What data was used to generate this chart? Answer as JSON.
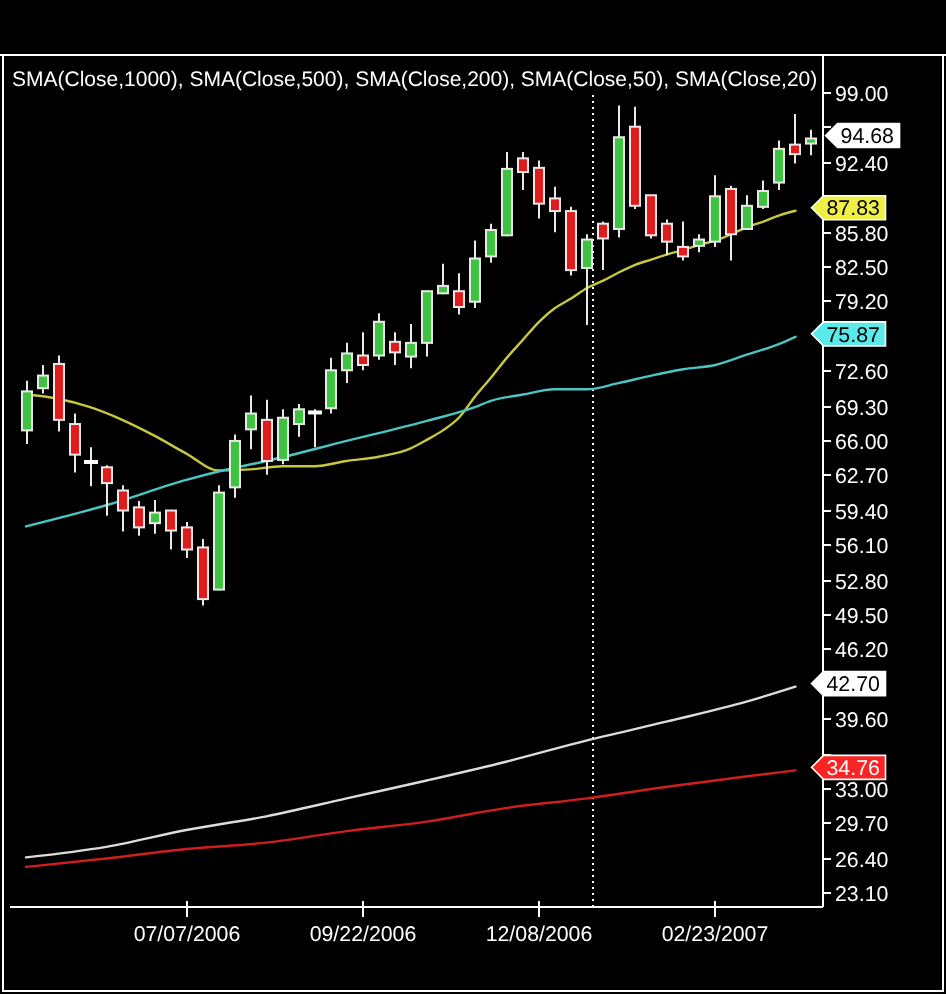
{
  "chart_data": {
    "type": "candlestick",
    "title": "SMA(Close,1000), SMA(Close,500), SMA(Close,200), SMA(Close,50), SMA(Close,20)",
    "x": [
      "2006-04-28",
      "2006-05-05",
      "2006-05-12",
      "2006-05-19",
      "2006-05-26",
      "2006-06-02",
      "2006-06-09",
      "2006-06-16",
      "2006-06-23",
      "2006-06-30",
      "2006-07-07",
      "2006-07-14",
      "2006-07-21",
      "2006-07-28",
      "2006-08-04",
      "2006-08-11",
      "2006-08-18",
      "2006-08-25",
      "2006-09-01",
      "2006-09-08",
      "2006-09-15",
      "2006-09-22",
      "2006-09-29",
      "2006-10-06",
      "2006-10-13",
      "2006-10-20",
      "2006-10-27",
      "2006-11-03",
      "2006-11-10",
      "2006-11-17",
      "2006-11-24",
      "2006-12-01",
      "2006-12-08",
      "2006-12-15",
      "2006-12-22",
      "2006-12-29",
      "2007-01-05",
      "2007-01-12",
      "2007-01-19",
      "2007-01-26",
      "2007-02-02",
      "2007-02-09",
      "2007-02-16",
      "2007-02-23",
      "2007-03-02",
      "2007-03-09",
      "2007-03-16",
      "2007-03-23",
      "2007-03-30",
      "2007-04-06"
    ],
    "ohlc": [
      [
        67.0,
        71.7,
        65.7,
        70.7
      ],
      [
        71.0,
        73.2,
        70.5,
        72.2
      ],
      [
        73.3,
        74.1,
        66.9,
        68.0
      ],
      [
        67.6,
        68.6,
        63.0,
        64.7
      ],
      [
        64.0,
        65.4,
        61.7,
        64.0
      ],
      [
        63.5,
        63.7,
        58.9,
        62.0
      ],
      [
        61.3,
        61.8,
        57.4,
        59.4
      ],
      [
        59.7,
        60.3,
        57.0,
        57.8
      ],
      [
        58.2,
        60.4,
        57.2,
        59.2
      ],
      [
        59.4,
        59.4,
        55.7,
        57.5
      ],
      [
        57.8,
        58.3,
        54.9,
        55.7
      ],
      [
        55.9,
        56.7,
        50.4,
        51.0
      ],
      [
        51.9,
        61.8,
        51.9,
        61.1
      ],
      [
        61.6,
        66.6,
        60.6,
        66.0
      ],
      [
        67.1,
        70.3,
        65.2,
        68.6
      ],
      [
        68.0,
        69.9,
        62.8,
        64.1
      ],
      [
        64.2,
        69.0,
        63.8,
        68.2
      ],
      [
        67.6,
        69.5,
        66.4,
        69.0
      ],
      [
        68.7,
        69.0,
        65.4,
        68.7
      ],
      [
        69.1,
        73.9,
        68.6,
        72.7
      ],
      [
        72.7,
        75.3,
        71.5,
        74.3
      ],
      [
        74.1,
        76.3,
        72.7,
        73.2
      ],
      [
        74.1,
        78.1,
        73.7,
        77.3
      ],
      [
        75.4,
        76.3,
        73.2,
        74.4
      ],
      [
        74.0,
        77.1,
        72.9,
        75.3
      ],
      [
        75.3,
        80.2,
        74.0,
        80.2
      ],
      [
        80.0,
        82.8,
        79.9,
        80.7
      ],
      [
        80.2,
        81.9,
        78.0,
        78.7
      ],
      [
        79.2,
        85.0,
        78.6,
        83.3
      ],
      [
        83.5,
        86.6,
        82.9,
        86.0
      ],
      [
        85.5,
        93.4,
        85.4,
        91.8
      ],
      [
        92.8,
        93.4,
        89.8,
        91.5
      ],
      [
        91.9,
        92.6,
        87.1,
        88.5
      ],
      [
        89.0,
        90.1,
        85.8,
        87.8
      ],
      [
        87.8,
        88.2,
        81.7,
        82.2
      ],
      [
        82.4,
        85.6,
        77.0,
        85.1
      ],
      [
        86.6,
        86.8,
        82.2,
        85.2
      ],
      [
        86.1,
        97.8,
        85.3,
        94.8
      ],
      [
        95.8,
        97.7,
        88.0,
        88.3
      ],
      [
        89.3,
        89.3,
        85.2,
        85.5
      ],
      [
        86.6,
        87.0,
        83.6,
        84.9
      ],
      [
        84.4,
        86.8,
        83.1,
        83.5
      ],
      [
        84.5,
        85.6,
        83.9,
        85.1
      ],
      [
        84.9,
        91.2,
        84.4,
        89.2
      ],
      [
        89.9,
        90.2,
        83.1,
        85.6
      ],
      [
        86.1,
        89.3,
        86.0,
        88.3
      ],
      [
        88.2,
        90.7,
        88.0,
        89.7
      ],
      [
        90.5,
        94.5,
        89.8,
        93.7
      ],
      [
        94.1,
        97.0,
        92.3,
        93.2
      ],
      [
        94.2,
        95.5,
        93.1,
        94.68
      ]
    ],
    "colors": [
      "#3fc23f",
      "#3fc23f",
      "#e01b1b",
      "#e01b1b",
      "#ffffff",
      "#e01b1b",
      "#e01b1b",
      "#e01b1b",
      "#3fc23f",
      "#e01b1b",
      "#e01b1b",
      "#e01b1b",
      "#3fc23f",
      "#3fc23f",
      "#3fc23f",
      "#e01b1b",
      "#3fc23f",
      "#3fc23f",
      "#ffffff",
      "#3fc23f",
      "#3fc23f",
      "#e01b1b",
      "#3fc23f",
      "#e01b1b",
      "#3fc23f",
      "#3fc23f",
      "#3fc23f",
      "#e01b1b",
      "#3fc23f",
      "#3fc23f",
      "#3fc23f",
      "#e01b1b",
      "#e01b1b",
      "#e01b1b",
      "#e01b1b",
      "#3fc23f",
      "#e01b1b",
      "#3fc23f",
      "#e01b1b",
      "#e01b1b",
      "#e01b1b",
      "#e01b1b",
      "#3fc23f",
      "#3fc23f",
      "#e01b1b",
      "#3fc23f",
      "#3fc23f",
      "#3fc23f",
      "#e01b1b",
      "#3fc23f"
    ],
    "series": [
      {
        "type": "line",
        "color": "#c8c83c",
        "x": [
          "2006-04-28",
          "2006-05-12",
          "2006-05-26",
          "2006-06-09",
          "2006-06-23",
          "2006-07-07",
          "2006-07-21",
          "2006-08-04",
          "2006-08-18",
          "2006-09-01",
          "2006-09-15",
          "2006-09-29",
          "2006-10-13",
          "2006-10-20",
          "2006-10-27",
          "2006-11-03",
          "2006-11-10",
          "2006-11-17",
          "2006-11-24",
          "2006-12-01",
          "2006-12-08",
          "2006-12-15",
          "2006-12-22",
          "2006-12-29",
          "2007-01-05",
          "2007-01-12",
          "2007-01-19",
          "2007-01-26",
          "2007-02-02",
          "2007-02-09",
          "2007-02-16",
          "2007-02-23",
          "2007-03-02",
          "2007-03-09",
          "2007-03-16",
          "2007-03-23",
          "2007-03-30"
        ],
        "values": [
          70.4,
          70.0,
          69.2,
          68.0,
          66.5,
          64.8,
          63.2,
          63.3,
          63.6,
          63.6,
          64.1,
          64.5,
          65.3,
          66.1,
          67.0,
          68.2,
          70.2,
          72.0,
          73.9,
          75.6,
          77.3,
          78.6,
          79.5,
          80.5,
          81.2,
          82.0,
          82.7,
          83.2,
          83.7,
          84.1,
          84.6,
          85.0,
          85.6,
          86.3,
          86.8,
          87.4,
          87.83
        ],
        "value_labels": [
          null,
          null,
          null,
          null,
          null,
          null,
          null,
          null,
          null,
          null,
          null,
          null,
          null,
          null,
          null,
          null,
          null,
          null,
          null,
          null,
          null,
          null,
          null,
          null,
          null,
          null,
          null,
          null,
          null,
          null,
          null,
          null,
          null,
          null,
          null,
          null,
          "87.83"
        ]
      },
      {
        "type": "line",
        "color": "#4cc4c4",
        "x": [
          "2006-04-28",
          "2006-06-02",
          "2006-07-07",
          "2006-07-21",
          "2006-08-11",
          "2006-09-15",
          "2006-10-20",
          "2006-11-10",
          "2006-11-17",
          "2006-12-01",
          "2006-12-15",
          "2006-12-29",
          "2007-01-12",
          "2007-01-26",
          "2007-02-09",
          "2007-02-23",
          "2007-03-09",
          "2007-03-23",
          "2007-03-30"
        ],
        "values": [
          57.9,
          59.9,
          62.3,
          63.1,
          64.1,
          66.0,
          67.9,
          69.2,
          69.8,
          70.4,
          70.9,
          70.9,
          71.5,
          72.2,
          72.8,
          73.2,
          74.2,
          75.2,
          75.87
        ],
        "value_labels": [
          null,
          null,
          null,
          null,
          null,
          null,
          null,
          null,
          null,
          null,
          null,
          null,
          null,
          null,
          null,
          null,
          null,
          null,
          "75.87"
        ]
      },
      {
        "type": "line",
        "color": "#dcdcdc",
        "x": [
          "2006-04-28",
          "2006-06-02",
          "2006-07-07",
          "2006-08-11",
          "2006-09-15",
          "2006-10-20",
          "2006-11-24",
          "2006-12-29",
          "2007-02-02",
          "2007-03-09",
          "2007-03-30"
        ],
        "values": [
          26.5,
          27.5,
          29.1,
          30.4,
          32.1,
          33.8,
          35.6,
          37.6,
          39.4,
          41.3,
          42.7
        ],
        "value_labels": [
          null,
          null,
          null,
          null,
          null,
          null,
          null,
          null,
          null,
          null,
          "42.70"
        ]
      },
      {
        "type": "line",
        "color": "#d01e1e",
        "x": [
          "2006-04-28",
          "2006-06-02",
          "2006-07-07",
          "2006-08-11",
          "2006-09-15",
          "2006-10-20",
          "2006-11-24",
          "2006-12-29",
          "2007-02-02",
          "2007-03-09",
          "2007-03-30"
        ],
        "values": [
          25.6,
          26.4,
          27.3,
          27.9,
          29.0,
          29.9,
          31.2,
          32.1,
          33.2,
          34.2,
          34.76
        ],
        "value_labels": [
          null,
          null,
          null,
          null,
          null,
          null,
          null,
          null,
          null,
          null,
          "34.76"
        ]
      }
    ],
    "annotations": [
      {
        "text": "94.68",
        "x": "2007-04-06",
        "y": 94.68
      }
    ],
    "ref_lines": [
      {
        "axis": "x",
        "value": "2007-01-01",
        "color": "#ffffff",
        "line_style": "dotted"
      }
    ],
    "xlim": [
      "2006-04-21",
      "2007-04-11"
    ],
    "xticks": [
      {
        "value": "2006-07-07",
        "label": "07/07/2006"
      },
      {
        "value": "2006-09-22",
        "label": "09/22/2006"
      },
      {
        "value": "2006-12-08",
        "label": "12/08/2006"
      },
      {
        "value": "2007-02-23",
        "label": "02/23/2007"
      }
    ],
    "ylim": [
      21.8,
      102.6
    ],
    "yticks": [
      {
        "value": 23.1,
        "label": "23.10"
      },
      {
        "value": 26.4,
        "label": "26.40"
      },
      {
        "value": 29.7,
        "label": "29.70"
      },
      {
        "value": 33,
        "label": "33.00"
      },
      {
        "value": 36.3,
        "label": null
      },
      {
        "value": 39.6,
        "label": "39.60"
      },
      {
        "value": 42.9,
        "label": null
      },
      {
        "value": 46.2,
        "label": "46.20"
      },
      {
        "value": 49.5,
        "label": "49.50"
      },
      {
        "value": 52.8,
        "label": "52.80"
      },
      {
        "value": 56.1,
        "label": "56.10"
      },
      {
        "value": 59.4,
        "label": "59.40"
      },
      {
        "value": 62.7,
        "label": "62.70"
      },
      {
        "value": 66,
        "label": "66.00"
      },
      {
        "value": 69.3,
        "label": "69.30"
      },
      {
        "value": 72.6,
        "label": "72.60"
      },
      {
        "value": 75.9,
        "label": null
      },
      {
        "value": 79.2,
        "label": "79.20"
      },
      {
        "value": 82.5,
        "label": "82.50"
      },
      {
        "value": 85.8,
        "label": "85.80"
      },
      {
        "value": 89.1,
        "label": null
      },
      {
        "value": 92.4,
        "label": "92.40"
      },
      {
        "value": 95.7,
        "label": null
      },
      {
        "value": 99,
        "label": "99.00"
      }
    ]
  }
}
